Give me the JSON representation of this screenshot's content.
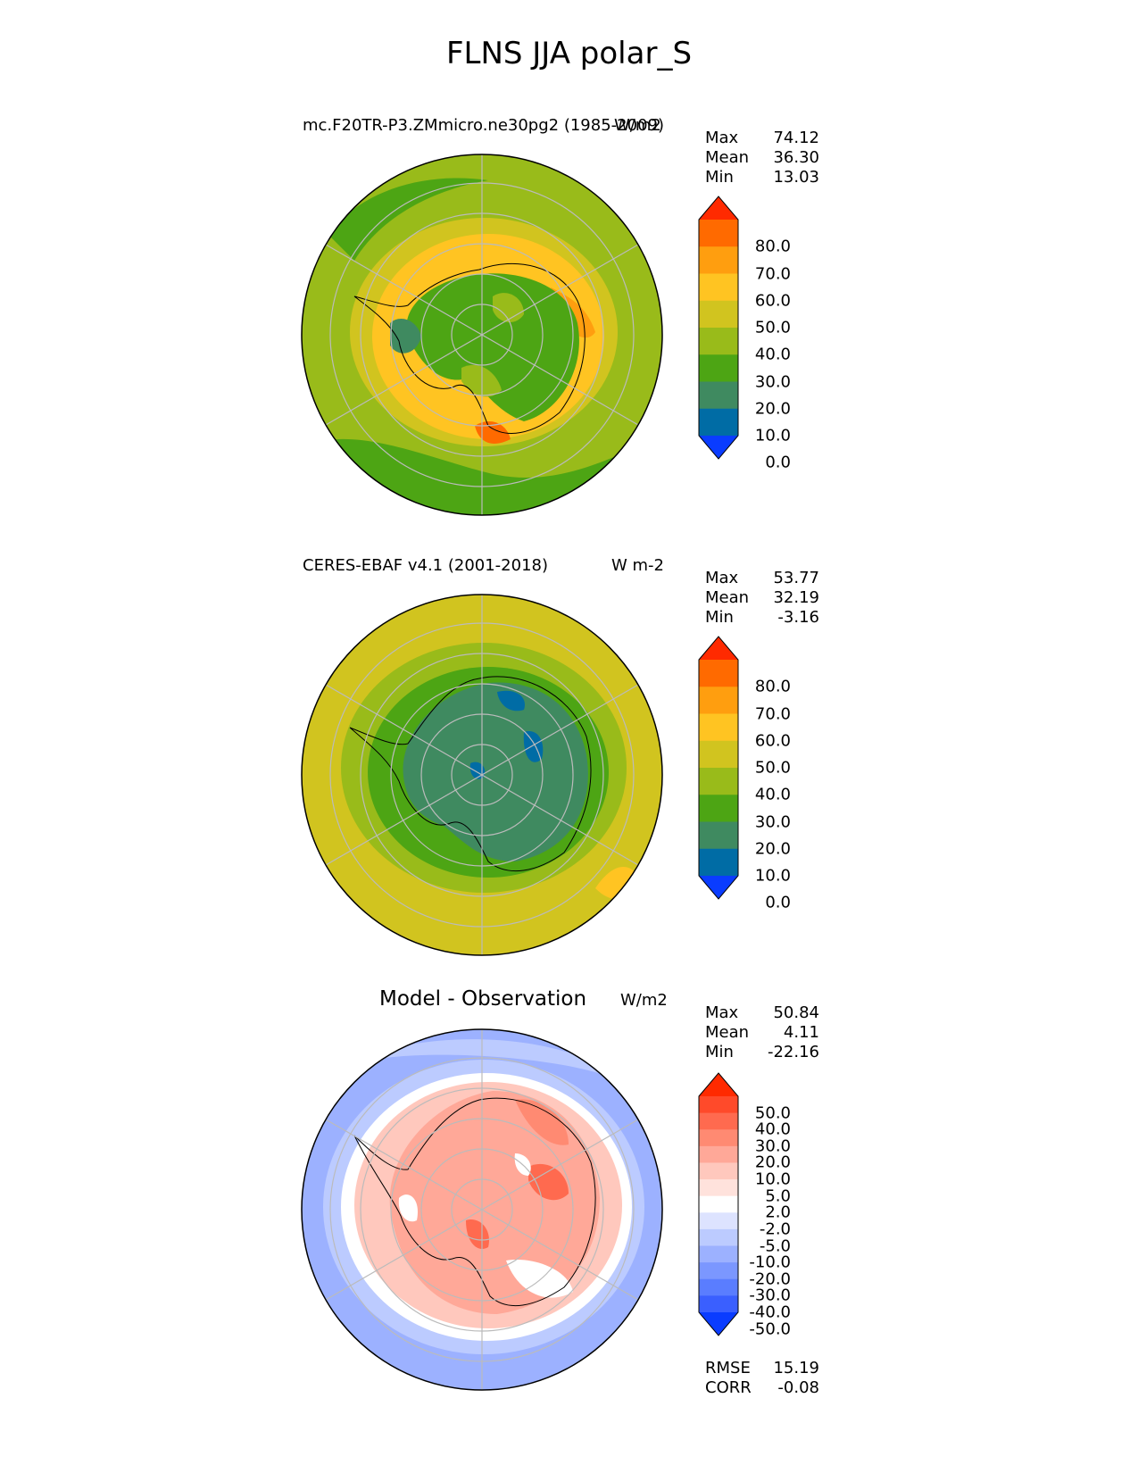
{
  "figure": {
    "title": "FLNS JJA polar_S"
  },
  "panels": [
    {
      "id": "test",
      "title": "mc.F20TR-P3.ZMmicro.ne30pg2 (1985-2009)",
      "units": "W/m2",
      "stats": {
        "max_label": "Max",
        "max": "74.12",
        "mean_label": "Mean",
        "mean": "36.30",
        "min_label": "Min",
        "min": "13.03"
      },
      "colorbar": {
        "ticks": [
          "80.0",
          "70.0",
          "60.0",
          "50.0",
          "40.0",
          "30.0",
          "20.0",
          "10.0",
          "0.0"
        ],
        "colors_top_to_bottom": [
          "#ff2a00",
          "#ff6a00",
          "#ff9e0f",
          "#ffc422",
          "#d1c41f",
          "#99bb1a",
          "#4da514",
          "#3f8a60",
          "#006ca5",
          "#0a3cff"
        ]
      },
      "map_colors": {
        "ocean_outer": "#99bb1a",
        "ring": "#d1c41f",
        "coastal": "#ffc422",
        "warm": "#ff9e0f",
        "hot": "#ff6a00",
        "interior": "#4da514",
        "interior2": "#3f8a60",
        "outer_band": "#4da514"
      }
    },
    {
      "id": "ref",
      "title": "CERES-EBAF v4.1 (2001-2018)",
      "units": "W m-2",
      "stats": {
        "max_label": "Max",
        "max": "53.77",
        "mean_label": "Mean",
        "mean": "32.19",
        "min_label": "Min",
        "min": "-3.16"
      },
      "colorbar": {
        "ticks": [
          "80.0",
          "70.0",
          "60.0",
          "50.0",
          "40.0",
          "30.0",
          "20.0",
          "10.0",
          "0.0"
        ],
        "colors_top_to_bottom": [
          "#ff2a00",
          "#ff6a00",
          "#ff9e0f",
          "#ffc422",
          "#d1c41f",
          "#99bb1a",
          "#4da514",
          "#3f8a60",
          "#006ca5",
          "#0a3cff"
        ]
      },
      "map_colors": {
        "ocean_outer": "#d1c41f",
        "ring": "#99bb1a",
        "coastal": "#4da514",
        "interior": "#3f8a60",
        "interior2": "#006ca5",
        "warm": "#ffc422"
      }
    },
    {
      "id": "diff",
      "title": "Model - Observation",
      "units": "W/m2",
      "stats": {
        "max_label": "Max",
        "max": "50.84",
        "mean_label": "Mean",
        "mean": "4.11",
        "min_label": "Min",
        "min": "-22.16"
      },
      "colorbar": {
        "ticks": [
          "50.0",
          "40.0",
          "30.0",
          "20.0",
          "10.0",
          "5.0",
          "2.0",
          "-2.0",
          "-5.0",
          "-10.0",
          "-20.0",
          "-30.0",
          "-40.0",
          "-50.0"
        ],
        "colors_top_to_bottom": [
          "#ff2a00",
          "#ff4a2a",
          "#ff6a4f",
          "#ff8a72",
          "#ffa898",
          "#ffc8bd",
          "#ffe2dc",
          "#ffffff",
          "#dde3ff",
          "#bccbff",
          "#9cb1ff",
          "#7b97ff",
          "#5a7dff",
          "#3a5fff",
          "#0a3cff"
        ]
      },
      "extra": {
        "rmse_label": "RMSE",
        "rmse": "15.19",
        "corr_label": "CORR",
        "corr": "-0.08"
      },
      "map_colors": {
        "ocean_outer": "#9cb1ff",
        "ring": "#ffffff",
        "coastal": "#ffc8bd",
        "interior": "#ffa898",
        "warm": "#ff8a72",
        "hot": "#ff6a4f",
        "light": "#bccbff"
      }
    }
  ]
}
